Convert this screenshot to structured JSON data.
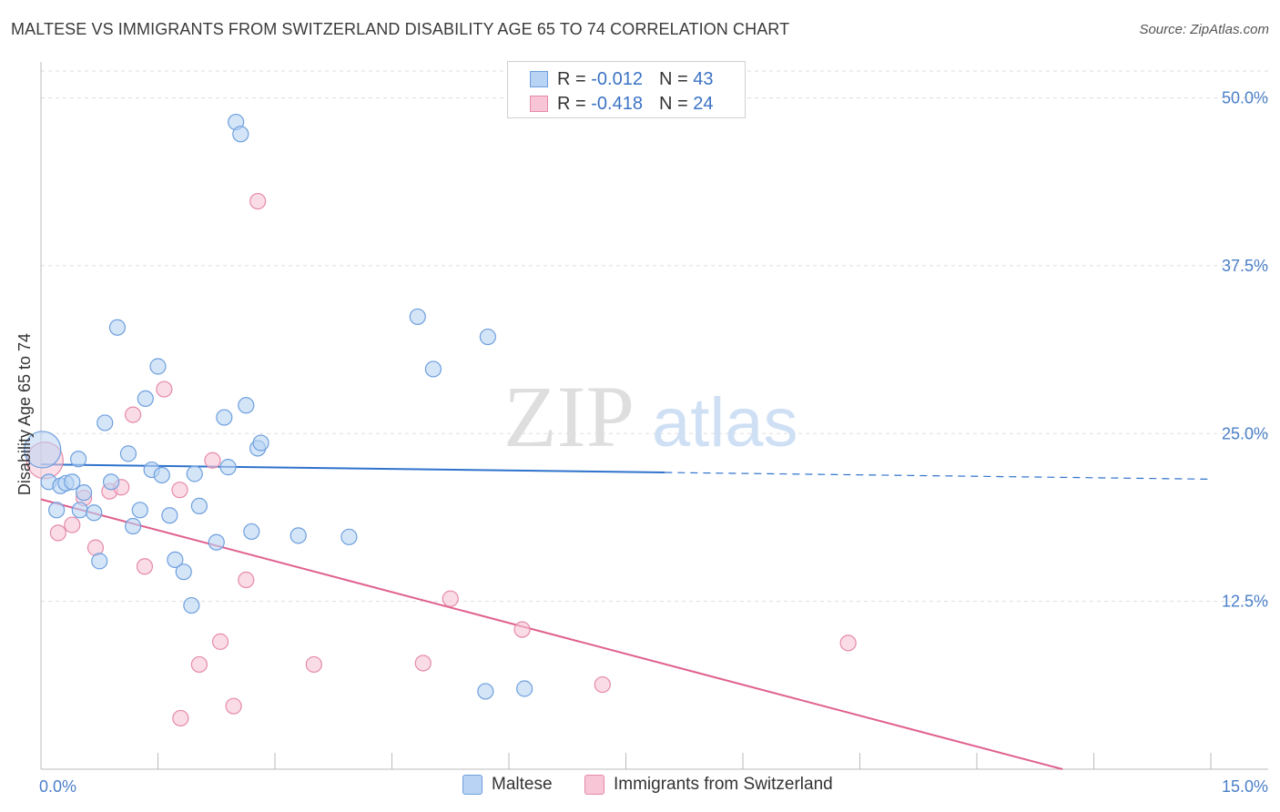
{
  "title": "MALTESE VS IMMIGRANTS FROM SWITZERLAND DISABILITY AGE 65 TO 74 CORRELATION CHART",
  "source": "Source: ZipAtlas.com",
  "watermark": {
    "zip": "ZIP",
    "atlas": "atlas"
  },
  "legend": {
    "rows": [
      {
        "r_key": "R =",
        "r_value": "-0.012",
        "n_key": "N =",
        "n_value": "43"
      },
      {
        "r_key": "R =",
        "r_value": "-0.418",
        "n_key": "N =",
        "n_value": "24"
      }
    ]
  },
  "bottom_legend": [
    "Maltese",
    "Immigrants from Switzerland"
  ],
  "colors": {
    "maltese_fill": "#b9d3f4",
    "maltese_stroke": "#6d9fde",
    "maltese_line": "#2f72cc",
    "swiss_fill": "#f7c5d5",
    "swiss_stroke": "#e68aa8",
    "swiss_line": "#e0608f",
    "grid": "#dddddd",
    "tick_label": "#4a7fc9"
  },
  "chart_data": {
    "type": "scatter",
    "ylabel": "Disability Age 65 to 74",
    "xlim": [
      0,
      15
    ],
    "ylim": [
      0,
      52
    ],
    "x_tick_labels": [
      {
        "value": 0,
        "label": "0.0%"
      },
      {
        "value": 15,
        "label": "15.0%"
      }
    ],
    "y_tick_labels": [
      {
        "value": 12.5,
        "label": "12.5%"
      },
      {
        "value": 25,
        "label": "25.0%"
      },
      {
        "value": 37.5,
        "label": "37.5%"
      },
      {
        "value": 50,
        "label": "50.0%"
      }
    ],
    "grid": true,
    "series": [
      {
        "name": "Maltese",
        "points": [
          {
            "x": 0.02,
            "y": 23.8,
            "large": true
          },
          {
            "x": 0.1,
            "y": 21.4
          },
          {
            "x": 0.2,
            "y": 19.3
          },
          {
            "x": 0.25,
            "y": 21.1
          },
          {
            "x": 0.32,
            "y": 21.3
          },
          {
            "x": 0.4,
            "y": 21.4
          },
          {
            "x": 0.48,
            "y": 23.1
          },
          {
            "x": 0.5,
            "y": 19.3
          },
          {
            "x": 0.55,
            "y": 20.6
          },
          {
            "x": 0.68,
            "y": 19.1
          },
          {
            "x": 0.75,
            "y": 15.5
          },
          {
            "x": 0.82,
            "y": 25.8
          },
          {
            "x": 0.9,
            "y": 21.4
          },
          {
            "x": 0.98,
            "y": 32.9
          },
          {
            "x": 1.12,
            "y": 23.5
          },
          {
            "x": 1.18,
            "y": 18.1
          },
          {
            "x": 1.27,
            "y": 19.3
          },
          {
            "x": 1.34,
            "y": 27.6
          },
          {
            "x": 1.42,
            "y": 22.3
          },
          {
            "x": 1.5,
            "y": 30.0
          },
          {
            "x": 1.55,
            "y": 21.9
          },
          {
            "x": 1.65,
            "y": 18.9
          },
          {
            "x": 1.72,
            "y": 15.6
          },
          {
            "x": 1.83,
            "y": 14.7
          },
          {
            "x": 1.93,
            "y": 12.2
          },
          {
            "x": 1.97,
            "y": 22.0
          },
          {
            "x": 2.03,
            "y": 19.6
          },
          {
            "x": 2.25,
            "y": 16.9
          },
          {
            "x": 2.35,
            "y": 26.2
          },
          {
            "x": 2.4,
            "y": 22.5
          },
          {
            "x": 2.5,
            "y": 48.2
          },
          {
            "x": 2.56,
            "y": 47.3
          },
          {
            "x": 2.63,
            "y": 27.1
          },
          {
            "x": 2.7,
            "y": 17.7
          },
          {
            "x": 2.78,
            "y": 23.9
          },
          {
            "x": 2.82,
            "y": 24.3
          },
          {
            "x": 3.3,
            "y": 17.4
          },
          {
            "x": 3.95,
            "y": 17.3
          },
          {
            "x": 4.83,
            "y": 33.7
          },
          {
            "x": 5.03,
            "y": 29.8
          },
          {
            "x": 5.73,
            "y": 32.2
          },
          {
            "x": 5.7,
            "y": 5.8
          },
          {
            "x": 6.2,
            "y": 6.0
          }
        ],
        "trend": {
          "x": [
            0,
            8.0
          ],
          "y": [
            22.7,
            22.1
          ],
          "dashed_to": [
            15,
            21.6
          ]
        }
      },
      {
        "name": "Immigrants from Switzerland",
        "points": [
          {
            "x": 0.05,
            "y": 23.0,
            "large": true
          },
          {
            "x": 0.22,
            "y": 17.6
          },
          {
            "x": 0.4,
            "y": 18.2
          },
          {
            "x": 0.55,
            "y": 20.2
          },
          {
            "x": 0.7,
            "y": 16.5
          },
          {
            "x": 0.88,
            "y": 20.7
          },
          {
            "x": 1.03,
            "y": 21.0
          },
          {
            "x": 1.18,
            "y": 26.4
          },
          {
            "x": 1.33,
            "y": 15.1
          },
          {
            "x": 1.58,
            "y": 28.3
          },
          {
            "x": 1.78,
            "y": 20.8
          },
          {
            "x": 1.79,
            "y": 3.8
          },
          {
            "x": 2.03,
            "y": 7.8
          },
          {
            "x": 2.2,
            "y": 23.0
          },
          {
            "x": 2.3,
            "y": 9.5
          },
          {
            "x": 2.47,
            "y": 4.7
          },
          {
            "x": 2.63,
            "y": 14.1
          },
          {
            "x": 2.78,
            "y": 42.3
          },
          {
            "x": 3.5,
            "y": 7.8
          },
          {
            "x": 4.9,
            "y": 7.9
          },
          {
            "x": 5.25,
            "y": 12.7
          },
          {
            "x": 6.17,
            "y": 10.4
          },
          {
            "x": 7.2,
            "y": 6.3
          },
          {
            "x": 10.35,
            "y": 9.4
          }
        ],
        "trend": {
          "x": [
            0,
            13.1
          ],
          "y": [
            20.1,
            0.0
          ]
        }
      }
    ]
  }
}
